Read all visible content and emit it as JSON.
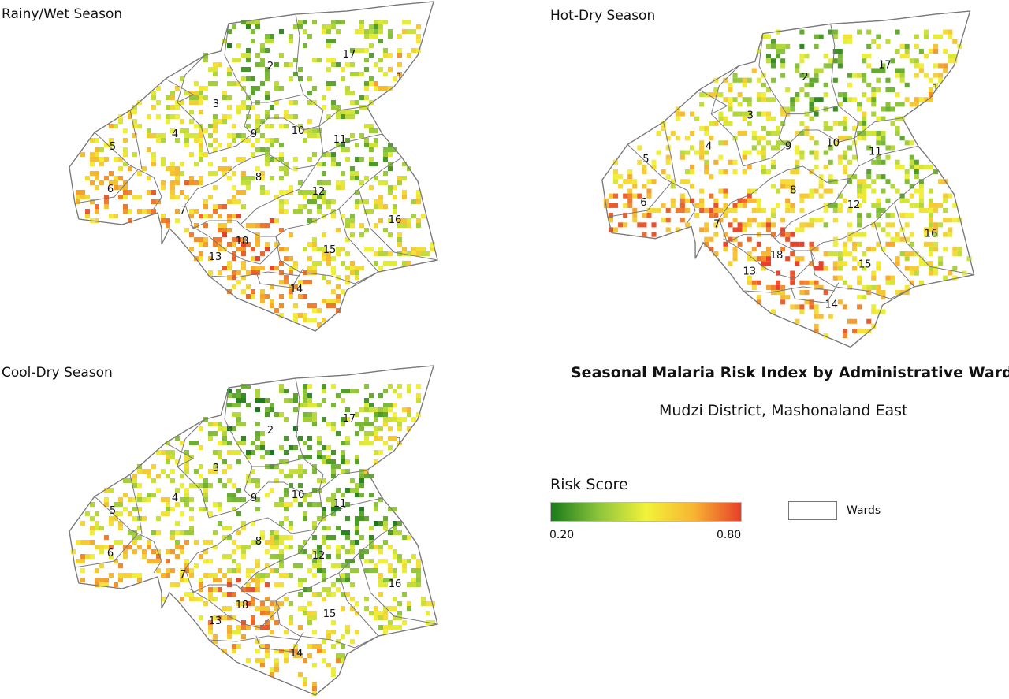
{
  "title": "Seasonal Malaria Risk Index by Administrative Ward",
  "subtitle": "Mudzi District, Mashonaland East",
  "legend": {
    "title": "Risk Score",
    "min_label": "0.20",
    "max_label": "0.80",
    "ramp_colors": [
      "#1a7a1a",
      "#8cc43c",
      "#f2f23a",
      "#f7b532",
      "#e8402a"
    ],
    "boundary_label": "Wards"
  },
  "panels": [
    {
      "id": "rainy",
      "title": "Rainy/Wet Season",
      "seed": 11,
      "bias": 0.02
    },
    {
      "id": "hotdry",
      "title": "Hot-Dry Season",
      "seed": 29,
      "bias": 0.04
    },
    {
      "id": "cooldry",
      "title": "Cool-Dry Season",
      "seed": 47,
      "bias": -0.02
    }
  ],
  "wards": [
    {
      "id": "1",
      "label": "1",
      "base_risk": 0.55
    },
    {
      "id": "2",
      "label": "2",
      "base_risk": 0.32
    },
    {
      "id": "3",
      "label": "3",
      "base_risk": 0.45
    },
    {
      "id": "4",
      "label": "4",
      "base_risk": 0.5
    },
    {
      "id": "5",
      "label": "5",
      "base_risk": 0.52
    },
    {
      "id": "6",
      "label": "6",
      "base_risk": 0.62
    },
    {
      "id": "7",
      "label": "7",
      "base_risk": 0.62
    },
    {
      "id": "8",
      "label": "8",
      "base_risk": 0.5
    },
    {
      "id": "9",
      "label": "9",
      "base_risk": 0.42
    },
    {
      "id": "10",
      "label": "10",
      "base_risk": 0.42
    },
    {
      "id": "11",
      "label": "11",
      "base_risk": 0.34
    },
    {
      "id": "12",
      "label": "12",
      "base_risk": 0.4
    },
    {
      "id": "13",
      "label": "13",
      "base_risk": 0.62
    },
    {
      "id": "14",
      "label": "14",
      "base_risk": 0.6
    },
    {
      "id": "15",
      "label": "15",
      "base_risk": 0.5
    },
    {
      "id": "16",
      "label": "16",
      "base_risk": 0.48
    },
    {
      "id": "17",
      "label": "17",
      "base_risk": 0.38
    },
    {
      "id": "18",
      "label": "18",
      "base_risk": 0.7
    }
  ]
}
